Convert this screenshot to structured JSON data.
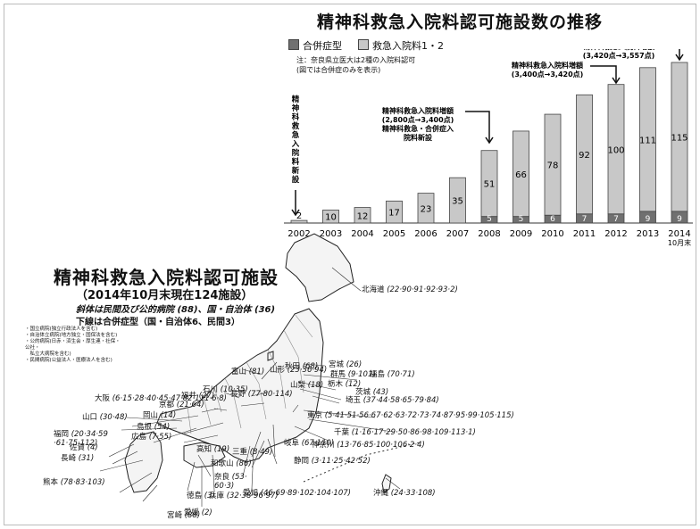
{
  "chart_data": {
    "type": "bar",
    "title": "精神科救急入院料認可施設数の推移",
    "legend": [
      "合併症型",
      "救急入院料1・2"
    ],
    "categories": [
      "2002",
      "2003",
      "2004",
      "2005",
      "2006",
      "2007",
      "2008",
      "2009",
      "2010",
      "2011",
      "2012",
      "2013",
      "2014\n10月末"
    ],
    "series": [
      {
        "name": "合併症型",
        "values": [
          0,
          0,
          0,
          0,
          0,
          0,
          5,
          5,
          6,
          7,
          7,
          9,
          9
        ]
      },
      {
        "name": "救急入院料1・2",
        "values": [
          2,
          10,
          12,
          17,
          23,
          35,
          51,
          66,
          78,
          92,
          100,
          111,
          115
        ]
      }
    ],
    "annotations": [
      {
        "text": "精神科救急入院料新設",
        "year": "2002"
      },
      {
        "text": "精神科救急入院料増額\n(2,800点→3,400点)\n精神科救急・合併症入\n院料新設",
        "year": "2008"
      },
      {
        "text": "精神科救急入院料増額\n(3,400点→3,420点)",
        "year": "2012"
      },
      {
        "text": "精神科救急入院料増額\n(3,420点→3,557点)",
        "year": "2014"
      }
    ],
    "colors": {
      "complication": "#707070",
      "emergency": "#c8c8c8",
      "edge": "#444444"
    }
  },
  "note": "注：奈良県立医大は2種の入院料認可\n(図では合併症のみを表示)",
  "legend": {
    "complication": "合併症型",
    "emergency": "救急入院料1・2"
  },
  "map": {
    "title": "精神科救急入院料認可施設",
    "subtitle": "（2014年10月末現在124施設）",
    "line1": "斜体は民間及び公的病院 (88)、国・自治体 (36)",
    "line2": "下線は合併症型（国・自治体6、民間3）",
    "legend_text": "・国立病院(独立行政法人を含む)\n・自治体立病院(地方独立・国保法を含む)\n・公的病院(日赤・済生会・厚生連・社保・公社・\n　私立大病院を含む)\n・民間病院(公益法人・医療法人を含む)",
    "prefs": [
      {
        "name": "北海道",
        "nums": "(22·90·91·92·93·2)"
      },
      {
        "name": "秋田",
        "nums": "(68)"
      },
      {
        "name": "山形",
        "nums": "(23·36·94)"
      },
      {
        "name": "富山",
        "nums": "(81)"
      },
      {
        "name": "山梨",
        "nums": "(18)"
      },
      {
        "name": "石川",
        "nums": "(10·35)"
      },
      {
        "name": "長野",
        "nums": "(77·80·114)"
      },
      {
        "name": "福井",
        "nums": "(27)"
      },
      {
        "name": "京都",
        "nums": "(21·64)"
      },
      {
        "name": "宮城",
        "nums": "(26)"
      },
      {
        "name": "群馬",
        "nums": "(9·101)"
      },
      {
        "name": "福島",
        "nums": "(70·71)"
      },
      {
        "name": "栃木",
        "nums": "(12)"
      },
      {
        "name": "茨城",
        "nums": "(43)"
      },
      {
        "name": "大阪",
        "nums": "(6·15·28·40·45·47·82·111·6·8)"
      },
      {
        "name": "埼玉",
        "nums": "(37·44·58·65·79·84)"
      },
      {
        "name": "岡山",
        "nums": "(14)"
      },
      {
        "name": "島根",
        "nums": "(54)"
      },
      {
        "name": "山口",
        "nums": "(30·48)"
      },
      {
        "name": "広島",
        "nums": "(7·55)"
      },
      {
        "name": "東京",
        "nums": "(5·41·51·56·67·62·63·72·73·74·87·95·99·105·115)"
      },
      {
        "name": "千葉",
        "nums": "(1·16·17·29·50·86·98·109·113·1)"
      },
      {
        "name": "福岡",
        "nums": "(20·34·59\n·61·75·112)"
      },
      {
        "name": "佐賀",
        "nums": "(4)"
      },
      {
        "name": "長崎",
        "nums": "(31)"
      },
      {
        "name": "神奈川",
        "nums": "(13·76·85·100·106·2·4)"
      },
      {
        "name": "三重",
        "nums": "(8·49)"
      },
      {
        "name": "高知",
        "nums": "(19)"
      },
      {
        "name": "和歌山",
        "nums": "(86)"
      },
      {
        "name": "奈良",
        "nums": "(53·\n60·3)"
      },
      {
        "name": "静岡",
        "nums": "(3·11·25·42·52)"
      },
      {
        "name": "岐阜",
        "nums": "(67·110)"
      },
      {
        "name": "熊本",
        "nums": "(78·83·103)"
      },
      {
        "name": "徳島",
        "nums": "(3)"
      },
      {
        "name": "兵庫",
        "nums": "(32·38·96·97)"
      },
      {
        "name": "愛知",
        "nums": "(46·69·89·102·104·107)"
      },
      {
        "name": "宮崎",
        "nums": "(88)"
      },
      {
        "name": "愛媛",
        "nums": "(2)"
      },
      {
        "name": "沖縄",
        "nums": "(24·33·108)"
      }
    ]
  }
}
